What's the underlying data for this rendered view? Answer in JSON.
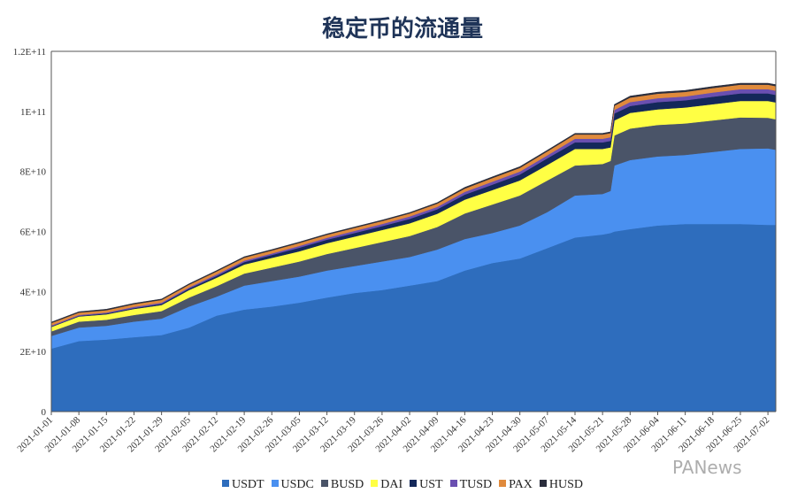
{
  "chart_data": {
    "type": "area",
    "stacked": true,
    "title": "稳定币的流通量",
    "xlabel": "",
    "ylabel": "",
    "ylim": [
      0,
      120000000000.0
    ],
    "y_ticks": [
      "0",
      "2E+10",
      "4E+10",
      "6E+10",
      "8E+10",
      "1E+11",
      "1.2E+11"
    ],
    "y_tick_values": [
      0,
      20000000000.0,
      40000000000.0,
      60000000000.0,
      80000000000.0,
      100000000000.0,
      120000000000.0
    ],
    "x_ticks": [
      "2021-01-01",
      "2021-01-08",
      "2021-01-15",
      "2021-01-22",
      "2021-01-29",
      "2021-02-05",
      "2021-02-12",
      "2021-02-19",
      "2021-02-26",
      "2021-03-05",
      "2021-03-12",
      "2021-03-19",
      "2021-03-26",
      "2021-04-02",
      "2021-04-09",
      "2021-04-16",
      "2021-04-23",
      "2021-04-30",
      "2021-05-07",
      "2021-05-14",
      "2021-05-21",
      "2021-05-28",
      "2021-06-04",
      "2021-06-11",
      "2021-06-18",
      "2021-06-25",
      "2021-07-02"
    ],
    "grid": false,
    "legend_position": "bottom",
    "x": [
      "2021-01-01",
      "2021-01-08",
      "2021-01-15",
      "2021-01-22",
      "2021-01-29",
      "2021-02-05",
      "2021-02-12",
      "2021-02-19",
      "2021-02-26",
      "2021-03-05",
      "2021-03-12",
      "2021-03-19",
      "2021-03-26",
      "2021-04-02",
      "2021-04-09",
      "2021-04-16",
      "2021-04-23",
      "2021-04-30",
      "2021-05-07",
      "2021-05-14",
      "2021-05-21",
      "2021-05-23",
      "2021-05-24",
      "2021-05-28",
      "2021-06-04",
      "2021-06-11",
      "2021-06-18",
      "2021-06-25",
      "2021-07-02",
      "2021-07-04"
    ],
    "series": [
      {
        "name": "USDT",
        "color": "#2e6dbd",
        "values": [
          21000000000.0,
          23500000000.0,
          24000000000.0,
          24800000000.0,
          25500000000.0,
          28000000000.0,
          32000000000.0,
          34000000000.0,
          35000000000.0,
          36300000000.0,
          38000000000.0,
          39500000000.0,
          40500000000.0,
          42000000000.0,
          43500000000.0,
          47000000000.0,
          49500000000.0,
          51000000000.0,
          54500000000.0,
          58000000000.0,
          59000000000.0,
          59500000000.0,
          60000000000.0,
          60800000000.0,
          62000000000.0,
          62500000000.0,
          62500000000.0,
          62500000000.0,
          62200000000.0,
          62200000000.0
        ]
      },
      {
        "name": "USDC",
        "color": "#4a90f0",
        "values": [
          4200000000.0,
          4500000000.0,
          4600000000.0,
          5200000000.0,
          5500000000.0,
          7000000000.0,
          6300000000.0,
          8000000000.0,
          8500000000.0,
          8700000000.0,
          9000000000.0,
          9000000000.0,
          9500000000.0,
          9500000000.0,
          10500000000.0,
          10500000000.0,
          10000000000.0,
          11000000000.0,
          12000000000.0,
          14000000000.0,
          13500000000.0,
          14000000000.0,
          22000000000.0,
          23000000000.0,
          23000000000.0,
          23000000000.0,
          24000000000.0,
          25000000000.0,
          25500000000.0,
          25000000000.0
        ]
      },
      {
        "name": "BUSD",
        "color": "#4a5468",
        "values": [
          1500000000.0,
          2000000000.0,
          2000000000.0,
          2200000000.0,
          2500000000.0,
          3000000000.0,
          3500000000.0,
          4000000000.0,
          4500000000.0,
          5000000000.0,
          5500000000.0,
          6000000000.0,
          6500000000.0,
          7000000000.0,
          7500000000.0,
          8500000000.0,
          9500000000.0,
          10000000000.0,
          10500000000.0,
          10000000000.0,
          10000000000.0,
          10000000000.0,
          10000000000.0,
          10500000000.0,
          10500000000.0,
          10500000000.0,
          10500000000.0,
          10500000000.0,
          10200000000.0,
          10200000000.0
        ]
      },
      {
        "name": "DAI",
        "color": "#ffff44",
        "values": [
          1500000000.0,
          1700000000.0,
          1800000000.0,
          2000000000.0,
          2000000000.0,
          2500000000.0,
          2800000000.0,
          3000000000.0,
          3200000000.0,
          3400000000.0,
          3600000000.0,
          3800000000.0,
          4000000000.0,
          4200000000.0,
          4400000000.0,
          4600000000.0,
          4800000000.0,
          5000000000.0,
          5200000000.0,
          5500000000.0,
          5000000000.0,
          4500000000.0,
          5000000000.0,
          5200000000.0,
          5200000000.0,
          5300000000.0,
          5400000000.0,
          5500000000.0,
          5600000000.0,
          5600000000.0
        ]
      },
      {
        "name": "UST",
        "color": "#14285a",
        "values": [
          200000000.0,
          200000000.0,
          300000000.0,
          300000000.0,
          400000000.0,
          500000000.0,
          600000000.0,
          800000000.0,
          1000000000.0,
          1200000000.0,
          1200000000.0,
          1200000000.0,
          1300000000.0,
          1500000000.0,
          1500000000.0,
          1700000000.0,
          1800000000.0,
          2000000000.0,
          2200000000.0,
          2200000000.0,
          2200000000.0,
          2200000000.0,
          2300000000.0,
          2300000000.0,
          2400000000.0,
          2400000000.0,
          2500000000.0,
          2500000000.0,
          2500000000.0,
          2500000000.0
        ]
      },
      {
        "name": "TUSD",
        "color": "#6a4fb0",
        "values": [
          300000000.0,
          300000000.0,
          300000000.0,
          400000000.0,
          400000000.0,
          400000000.0,
          500000000.0,
          500000000.0,
          500000000.0,
          600000000.0,
          600000000.0,
          700000000.0,
          700000000.0,
          800000000.0,
          800000000.0,
          900000000.0,
          1000000000.0,
          1000000000.0,
          1000000000.0,
          1200000000.0,
          1200000000.0,
          1200000000.0,
          1200000000.0,
          1300000000.0,
          1300000000.0,
          1300000000.0,
          1400000000.0,
          1400000000.0,
          1400000000.0,
          1400000000.0
        ]
      },
      {
        "name": "PAX",
        "color": "#e08a3c",
        "values": [
          800000000.0,
          800000000.0,
          800000000.0,
          900000000.0,
          900000000.0,
          900000000.0,
          1000000000.0,
          1000000000.0,
          1000000000.0,
          1000000000.0,
          1000000000.0,
          1000000000.0,
          1000000000.0,
          1000000000.0,
          1100000000.0,
          1100000000.0,
          1200000000.0,
          1200000000.0,
          1300000000.0,
          1400000000.0,
          1400000000.0,
          1400000000.0,
          1400000000.0,
          1500000000.0,
          1500000000.0,
          1500000000.0,
          1500000000.0,
          1500000000.0,
          1500000000.0,
          1500000000.0
        ]
      },
      {
        "name": "HUSD",
        "color": "#2a2d3c",
        "values": [
          300000000.0,
          300000000.0,
          300000000.0,
          300000000.0,
          300000000.0,
          300000000.0,
          300000000.0,
          300000000.0,
          300000000.0,
          300000000.0,
          300000000.0,
          300000000.0,
          300000000.0,
          300000000.0,
          300000000.0,
          400000000.0,
          400000000.0,
          400000000.0,
          400000000.0,
          400000000.0,
          400000000.0,
          400000000.0,
          400000000.0,
          500000000.0,
          500000000.0,
          500000000.0,
          500000000.0,
          500000000.0,
          500000000.0,
          500000000.0
        ]
      }
    ]
  },
  "watermark": "PANews"
}
